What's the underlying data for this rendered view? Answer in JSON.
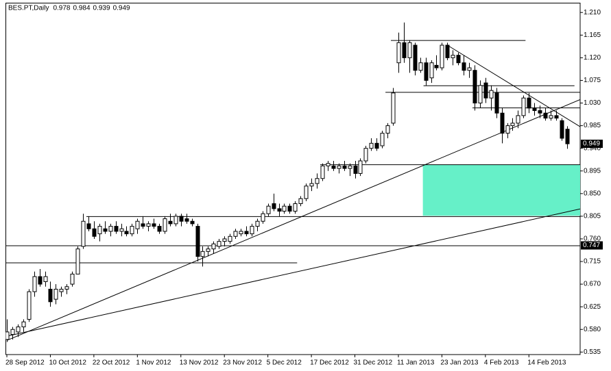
{
  "chart_data": {
    "type": "candlestick",
    "title": "BES.PT,Daily",
    "categories": [
      "28 Sep 2012",
      null,
      null,
      null,
      null,
      null,
      null,
      null,
      "10 Oct 2012",
      null,
      null,
      null,
      null,
      null,
      null,
      null,
      "22 Oct 2012",
      null,
      null,
      null,
      null,
      null,
      null,
      null,
      "1 Nov 2012",
      null,
      null,
      null,
      null,
      null,
      null,
      null,
      "13 Nov 2012",
      null,
      null,
      null,
      null,
      null,
      null,
      null,
      "23 Nov 2012",
      null,
      null,
      null,
      null,
      null,
      null,
      null,
      "5 Dec 2012",
      null,
      null,
      null,
      null,
      null,
      null,
      null,
      "17 Dec 2012",
      null,
      null,
      null,
      null,
      null,
      null,
      null,
      "31 Dec 2012",
      null,
      null,
      null,
      null,
      null,
      null,
      null,
      "11 Jan 2013",
      null,
      null,
      null,
      null,
      null,
      null,
      null,
      "23 Jan 2013",
      null,
      null,
      null,
      null,
      null,
      null,
      null,
      "4 Feb 2013",
      null,
      null,
      null,
      null,
      null,
      null,
      null,
      "14 Feb 2013",
      null,
      null,
      null,
      null,
      null,
      null,
      null
    ],
    "open": [
      0.56,
      0.57,
      0.575,
      0.585,
      0.6,
      0.655,
      0.685,
      0.675,
      0.66,
      0.64,
      0.655,
      0.66,
      0.67,
      0.69,
      0.745,
      0.79,
      0.78,
      0.77,
      0.78,
      0.775,
      0.785,
      0.775,
      0.775,
      0.77,
      0.78,
      0.79,
      0.785,
      0.79,
      0.785,
      0.775,
      0.795,
      0.79,
      0.805,
      0.8,
      0.795,
      0.785,
      0.725,
      0.735,
      0.74,
      0.745,
      0.755,
      0.755,
      0.765,
      0.77,
      0.775,
      0.77,
      0.785,
      0.795,
      0.81,
      0.83,
      0.82,
      0.815,
      0.825,
      0.815,
      0.83,
      0.84,
      0.865,
      0.87,
      0.88,
      0.905,
      0.905,
      0.9,
      0.905,
      0.9,
      0.905,
      0.89,
      0.915,
      0.94,
      0.95,
      0.945,
      0.97,
      0.99,
      1.11,
      1.15,
      1.12,
      1.145,
      1.095,
      1.11,
      1.08,
      1.105,
      1.1,
      1.145,
      1.12,
      1.125,
      1.11,
      1.095,
      1.095,
      1.03,
      1.07,
      1.04,
      1.05,
      1.01,
      0.97,
      0.985,
      0.99,
      1.005,
      1.04,
      1.02,
      1.015,
      1.01,
      1.0,
      1.005,
      0.995,
      0.978
    ],
    "high": [
      0.6,
      0.585,
      0.59,
      0.6,
      0.66,
      0.695,
      0.7,
      0.695,
      0.675,
      0.67,
      0.665,
      0.67,
      0.695,
      0.745,
      0.81,
      0.805,
      0.795,
      0.79,
      0.795,
      0.79,
      0.795,
      0.79,
      0.785,
      0.79,
      0.8,
      0.805,
      0.795,
      0.8,
      0.79,
      0.805,
      0.81,
      0.81,
      0.81,
      0.81,
      0.8,
      0.79,
      0.745,
      0.745,
      0.755,
      0.76,
      0.765,
      0.77,
      0.78,
      0.78,
      0.785,
      0.79,
      0.8,
      0.815,
      0.83,
      0.85,
      0.83,
      0.83,
      0.83,
      0.835,
      0.845,
      0.87,
      0.88,
      0.89,
      0.91,
      0.915,
      0.915,
      0.91,
      0.915,
      0.91,
      0.915,
      0.92,
      0.945,
      0.96,
      0.96,
      0.975,
      0.99,
      1.06,
      1.17,
      1.19,
      1.155,
      1.15,
      1.12,
      1.12,
      1.115,
      1.125,
      1.15,
      1.15,
      1.135,
      1.13,
      1.125,
      1.11,
      1.105,
      1.075,
      1.08,
      1.065,
      1.06,
      1.02,
      0.99,
      1.0,
      1.015,
      1.045,
      1.05,
      1.03,
      1.025,
      1.02,
      1.015,
      1.015,
      1.0,
      0.984
    ],
    "low": [
      0.555,
      0.56,
      0.565,
      0.575,
      0.595,
      0.645,
      0.665,
      0.665,
      0.625,
      0.63,
      0.645,
      0.65,
      0.665,
      0.69,
      0.74,
      0.775,
      0.76,
      0.755,
      0.77,
      0.765,
      0.77,
      0.765,
      0.765,
      0.765,
      0.77,
      0.78,
      0.775,
      0.78,
      0.77,
      0.77,
      0.785,
      0.785,
      0.785,
      0.79,
      0.785,
      0.715,
      0.705,
      0.725,
      0.73,
      0.74,
      0.745,
      0.75,
      0.76,
      0.765,
      0.765,
      0.765,
      0.775,
      0.79,
      0.805,
      0.815,
      0.805,
      0.81,
      0.81,
      0.81,
      0.825,
      0.835,
      0.855,
      0.86,
      0.875,
      0.895,
      0.895,
      0.89,
      0.895,
      0.885,
      0.88,
      0.885,
      0.91,
      0.935,
      0.935,
      0.94,
      0.96,
      0.985,
      1.09,
      1.11,
      1.09,
      1.085,
      1.09,
      1.065,
      1.07,
      1.095,
      1.095,
      1.115,
      1.105,
      1.105,
      1.085,
      1.08,
      1.015,
      1.02,
      1.03,
      1.015,
      1.0,
      0.95,
      0.96,
      0.975,
      0.98,
      1.0,
      1.01,
      1.005,
      1.0,
      0.995,
      0.995,
      0.995,
      0.955,
      0.939
    ],
    "close": [
      0.575,
      0.58,
      0.585,
      0.595,
      0.655,
      0.685,
      0.67,
      0.685,
      0.635,
      0.66,
      0.66,
      0.665,
      0.69,
      0.74,
      0.795,
      0.78,
      0.765,
      0.785,
      0.775,
      0.785,
      0.775,
      0.78,
      0.77,
      0.785,
      0.795,
      0.785,
      0.79,
      0.785,
      0.775,
      0.8,
      0.79,
      0.805,
      0.795,
      0.795,
      0.79,
      0.725,
      0.735,
      0.74,
      0.75,
      0.755,
      0.76,
      0.765,
      0.775,
      0.775,
      0.77,
      0.785,
      0.795,
      0.81,
      0.825,
      0.82,
      0.815,
      0.825,
      0.815,
      0.83,
      0.84,
      0.865,
      0.87,
      0.88,
      0.905,
      0.91,
      0.9,
      0.905,
      0.9,
      0.905,
      0.89,
      0.915,
      0.94,
      0.95,
      0.94,
      0.97,
      0.985,
      1.05,
      1.15,
      1.12,
      1.15,
      1.095,
      1.11,
      1.075,
      1.11,
      1.1,
      1.145,
      1.12,
      1.125,
      1.11,
      1.095,
      1.1,
      1.03,
      1.065,
      1.04,
      1.055,
      1.01,
      0.97,
      0.985,
      0.99,
      1.005,
      1.04,
      1.02,
      1.015,
      1.01,
      1.0,
      1.005,
      1.0,
      0.96,
      0.949
    ],
    "up_color": "#ffffff",
    "down_color": "#000000",
    "ylim": [
      0.53,
      1.228
    ],
    "yticks": [
      {
        "value": 1.21,
        "label": "1.210"
      },
      {
        "value": 1.165,
        "label": "1.165"
      },
      {
        "value": 1.12,
        "label": "1.120"
      },
      {
        "value": 1.075,
        "label": "1.075"
      },
      {
        "value": 1.03,
        "label": "1.030"
      },
      {
        "value": 0.985,
        "label": "0.985"
      },
      {
        "value": 0.94,
        "label": "0.940"
      },
      {
        "value": 0.895,
        "label": "0.895"
      },
      {
        "value": 0.85,
        "label": "0.850"
      },
      {
        "value": 0.805,
        "label": "0.805"
      },
      {
        "value": 0.76,
        "label": "0.760"
      },
      {
        "value": 0.715,
        "label": "0.715"
      },
      {
        "value": 0.67,
        "label": "0.670"
      },
      {
        "value": 0.625,
        "label": "0.625"
      },
      {
        "value": 0.58,
        "label": "0.580"
      },
      {
        "value": 0.535,
        "label": "0.535"
      }
    ],
    "price_labels": [
      {
        "value": 0.949,
        "label": "0.949"
      },
      {
        "value": 0.747,
        "label": "0.747"
      }
    ],
    "hlines": [
      {
        "value": 1.155,
        "from": 71,
        "to": 95
      },
      {
        "value": 1.065,
        "from": 77,
        "to": 104
      },
      {
        "value": 1.052,
        "from": 70
      },
      {
        "value": 1.021,
        "from": 86
      },
      {
        "value": 0.908,
        "from": 58
      },
      {
        "value": 0.805,
        "from": 15
      },
      {
        "value": 0.747
      },
      {
        "value": 0.713,
        "to": 53
      }
    ],
    "trendlines": [
      {
        "from": [
          0,
          0.5581
        ],
        "to": [
          100,
          1.0123
        ]
      },
      {
        "from": [
          0,
          0.5665
        ],
        "to": [
          100,
          0.8065
        ]
      },
      {
        "from": [
          81,
          1.145
        ],
        "to": [
          103,
          0.999
        ]
      }
    ],
    "zone": {
      "from": 77,
      "low": 0.806,
      "high": 0.907,
      "color": "#66f0c8"
    }
  }
}
